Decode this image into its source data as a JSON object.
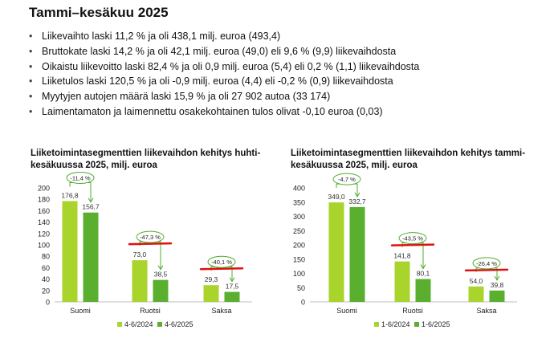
{
  "header": {
    "title": "Tammi–kesäkuu 2025"
  },
  "bullets": [
    "Liikevaihto laski 11,2 % ja oli 438,1 milj. euroa (493,4)",
    "Bruttokate laski 14,2 % ja oli 42,1 milj. euroa (49,0) eli 9,6 % (9,9) liikevaihdosta",
    "Oikaistu liikevoitto laski 82,4 % ja oli 0,9 milj. euroa (5,4) eli 0,2 % (1,1) liikevaihdosta",
    "Liiketulos laski 120,5 % ja oli -0,9 milj. euroa (4,4) eli -0,2 % (0,9) liikevaihdosta",
    "Myytyjen autojen määrä laski 15,9 % ja oli 27 902 autoa (33 174)",
    "Laimentamaton ja laimennettu osakekohtainen tulos olivat -0,10 euroa (0,03)"
  ],
  "colors": {
    "series_prev": "#a8d42c",
    "series_curr": "#5aaf2e",
    "axis": "#bfbfbf",
    "callout": "#4caf2a",
    "highlight": "#e01010"
  },
  "chart_data": [
    {
      "type": "bar",
      "title": "Liiketoimintasegmenttien liikevaihdon kehitys huhti-kesäkuussa 2025, milj. euroa",
      "categories": [
        "Suomi",
        "Ruotsi",
        "Saksa"
      ],
      "series": [
        {
          "name": "4-6/2024",
          "values": [
            176.8,
            73.0,
            29.3
          ],
          "labels": [
            "176,8",
            "73,0",
            "29,3"
          ]
        },
        {
          "name": "4-6/2025",
          "values": [
            156.7,
            38.5,
            17.5
          ],
          "labels": [
            "156,7",
            "38,5",
            "17,5"
          ]
        }
      ],
      "changes": [
        "-11,4 %",
        "-47,3 %",
        "-40,1 %"
      ],
      "highlighted": [
        false,
        true,
        true
      ],
      "ylim": [
        0,
        200
      ],
      "yticks": [
        0,
        20,
        40,
        60,
        80,
        100,
        120,
        140,
        160,
        180,
        200
      ],
      "legend": "bottom",
      "grid": false
    },
    {
      "type": "bar",
      "title": "Liiketoimintasegmenttien liikevaihdon kehitys tammi-kesäkuussa 2025, milj. euroa",
      "categories": [
        "Suomi",
        "Ruotsi",
        "Saksa"
      ],
      "series": [
        {
          "name": "1-6/2024",
          "values": [
            349.0,
            141.8,
            54.0
          ],
          "labels": [
            "349,0",
            "141,8",
            "54,0"
          ]
        },
        {
          "name": "1-6/2025",
          "values": [
            332.7,
            80.1,
            39.8
          ],
          "labels": [
            "332,7",
            "80,1",
            "39,8"
          ]
        }
      ],
      "changes": [
        "-4,7 %",
        "-43,5 %",
        "-26,4 %"
      ],
      "highlighted": [
        false,
        true,
        true
      ],
      "ylim": [
        0,
        400
      ],
      "yticks": [
        0,
        50,
        100,
        150,
        200,
        250,
        300,
        350,
        400
      ],
      "legend": "bottom",
      "grid": false
    }
  ]
}
